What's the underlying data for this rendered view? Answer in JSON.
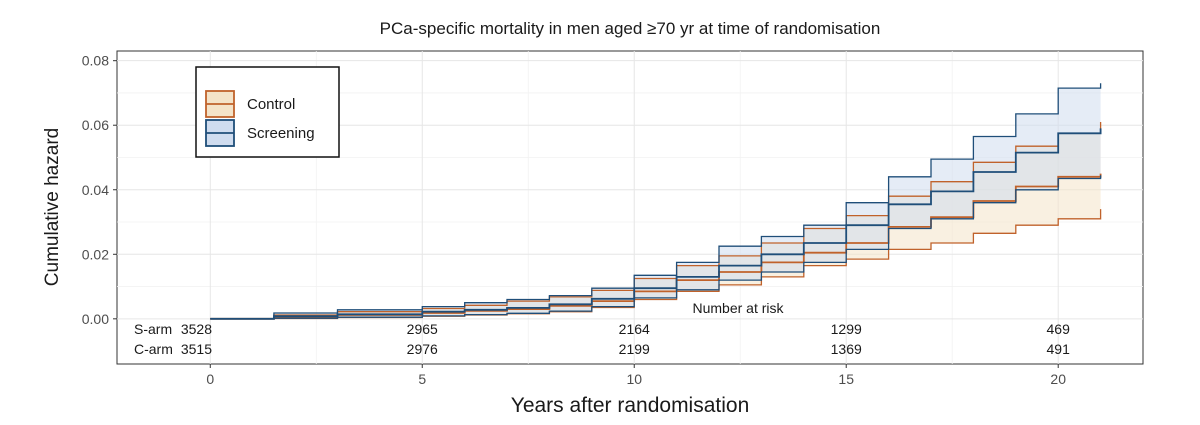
{
  "chart_data": {
    "type": "line",
    "title": "PCa-specific mortality in men aged ≥70 yr at time of randomisation",
    "xlabel": "Years after randomisation",
    "ylabel": "Cumulative hazard",
    "xlim": [
      -2.2,
      22
    ],
    "ylim": [
      -0.014,
      0.083
    ],
    "x_ticks": [
      0,
      5,
      10,
      15,
      20
    ],
    "y_ticks": [
      0.0,
      0.02,
      0.04,
      0.06,
      0.08
    ],
    "y_tick_labels": [
      "0.00",
      "0.02",
      "0.04",
      "0.06",
      "0.08"
    ],
    "grid": true,
    "legend_position": "top-left",
    "series": [
      {
        "name": "Control",
        "color": "#c0622b",
        "fill": "#f4e3c8",
        "x": [
          0,
          1.5,
          3,
          5,
          6,
          7,
          8,
          9,
          10,
          11,
          12,
          13,
          14,
          15,
          16,
          17,
          18,
          19,
          20,
          21
        ],
        "y": [
          0,
          0.0006,
          0.0012,
          0.0018,
          0.0025,
          0.003,
          0.004,
          0.0055,
          0.0085,
          0.012,
          0.0145,
          0.0175,
          0.0205,
          0.0235,
          0.0285,
          0.0315,
          0.0365,
          0.041,
          0.044,
          0.045
        ],
        "lower": [
          0,
          0.0001,
          0.0004,
          0.0008,
          0.0012,
          0.0016,
          0.0022,
          0.0035,
          0.006,
          0.0085,
          0.0105,
          0.013,
          0.0165,
          0.0185,
          0.0215,
          0.0235,
          0.0265,
          0.029,
          0.031,
          0.034
        ],
        "upper": [
          0,
          0.0012,
          0.0022,
          0.0032,
          0.0042,
          0.0055,
          0.0068,
          0.0088,
          0.0125,
          0.0165,
          0.0195,
          0.0235,
          0.028,
          0.032,
          0.038,
          0.0425,
          0.0485,
          0.0535,
          0.0575,
          0.061
        ]
      },
      {
        "name": "Screening",
        "color": "#1f4e79",
        "fill": "#cfdcef",
        "x": [
          0,
          1.5,
          3,
          5,
          6,
          7,
          8,
          9,
          10,
          11,
          12,
          13,
          14,
          15,
          16,
          17,
          18,
          19,
          20,
          21
        ],
        "y": [
          0,
          0.0008,
          0.0014,
          0.0022,
          0.0028,
          0.0034,
          0.0045,
          0.0062,
          0.0095,
          0.013,
          0.0165,
          0.02,
          0.0235,
          0.029,
          0.0355,
          0.0395,
          0.0455,
          0.0515,
          0.0575,
          0.059
        ],
        "lower": [
          0,
          0.0002,
          0.0005,
          0.0009,
          0.0013,
          0.0017,
          0.0024,
          0.0038,
          0.0065,
          0.009,
          0.012,
          0.0145,
          0.0175,
          0.0215,
          0.028,
          0.031,
          0.036,
          0.04,
          0.0435,
          0.0445
        ],
        "upper": [
          0,
          0.0018,
          0.0028,
          0.0038,
          0.005,
          0.006,
          0.0072,
          0.0095,
          0.0135,
          0.0175,
          0.0225,
          0.0255,
          0.029,
          0.036,
          0.044,
          0.0495,
          0.0565,
          0.0635,
          0.0715,
          0.073
        ]
      }
    ],
    "risk_table": {
      "header": "Number at risk",
      "x": [
        0,
        5,
        10,
        15,
        20
      ],
      "rows": [
        {
          "label": "S-arm",
          "values": [
            "3528",
            "2965",
            "2164",
            "1299",
            "469"
          ]
        },
        {
          "label": "C-arm",
          "values": [
            "3515",
            "2976",
            "2199",
            "1369",
            "491"
          ]
        }
      ]
    }
  }
}
